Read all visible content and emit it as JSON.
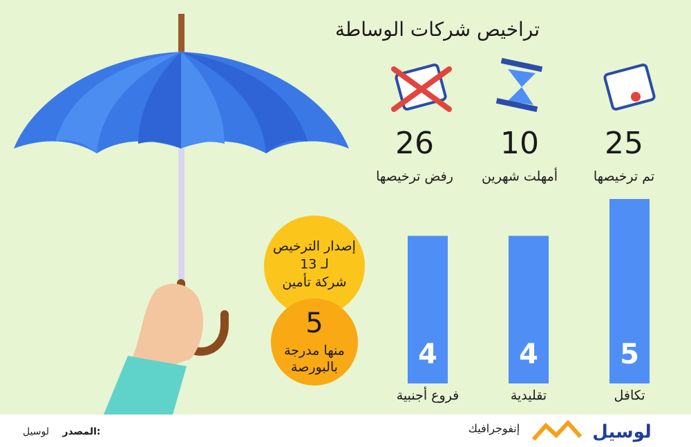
{
  "title": "تراخيص شركات الوساطة",
  "stats": [
    {
      "value": "25",
      "label": "تم ترخيصها"
    },
    {
      "value": "10",
      "label": "أمهلت شهرين"
    },
    {
      "value": "26",
      "label": "رفض ترخيصها"
    }
  ],
  "circles": [
    {
      "lines": [
        "إصدار الترخيص",
        "لـ 13",
        "شركة تأمين"
      ]
    },
    {
      "lines": [
        "5",
        "منها مدرجة",
        "بالبورصة"
      ]
    }
  ],
  "chart_data": {
    "type": "bar",
    "categories": [
      "تكافل",
      "تقليدية",
      "فروع أجنبية"
    ],
    "values": [
      5,
      4,
      4
    ],
    "color": "#4f8ef5"
  },
  "footer": {
    "source_label": "المصدر:",
    "source": "لوسيل",
    "section": "إنفوجرافيك",
    "brand": "لوسيل"
  }
}
